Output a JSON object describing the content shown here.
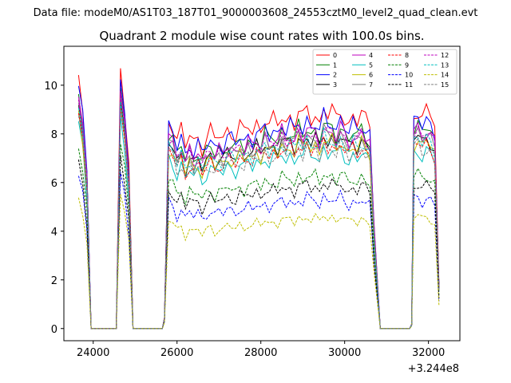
{
  "chart_data": {
    "type": "line",
    "suptitle": "Data file: modeM0/AS1T03_187T01_9000003608_24553cztM0_level2_quad_clean.evt",
    "title": "Quadrant 2 module wise count rates with 100.0s bins.",
    "xlabel": "",
    "ylabel": "",
    "x_offset_label": "+3.244e8",
    "xlim": [
      23300,
      32750
    ],
    "ylim": [
      -0.5,
      11.6
    ],
    "xticks": [
      24000,
      26000,
      28000,
      30000,
      32000
    ],
    "xtick_labels": [
      "24000",
      "26000",
      "28000",
      "30000",
      "32000"
    ],
    "yticks": [
      0,
      2,
      4,
      6,
      8,
      10
    ],
    "ytick_labels": [
      "0",
      "2",
      "4",
      "6",
      "8",
      "10"
    ],
    "grid": false,
    "legend_placement": "top-right",
    "segments": [
      {
        "x": [
          23650,
          23750,
          23850,
          23950
        ],
        "level_frac": [
          1.0,
          0.98,
          0.72,
          0.0
        ]
      },
      {
        "x": [
          24600,
          24650,
          24750,
          24850,
          24950
        ],
        "level_frac": [
          0.55,
          1.0,
          0.99,
          0.72,
          0.0
        ]
      },
      {
        "x": [
          25700,
          25800,
          25900,
          26000,
          26100,
          26200,
          26300,
          26400,
          26500,
          26600,
          26700,
          26800,
          26900,
          27000,
          27100,
          27200,
          27300,
          27400,
          27500,
          27600,
          27700,
          27800,
          27900,
          28000,
          28100,
          28200,
          28300,
          28400,
          28500,
          28600,
          28700,
          28800,
          28900,
          29000,
          29100,
          29200,
          29300,
          29400,
          29500,
          29600,
          29700,
          29800,
          29900,
          30000,
          30100,
          30200,
          30300,
          30400,
          30500,
          30600,
          30700
        ],
        "level_frac": [
          0.05,
          0.93,
          0.9,
          0.83,
          0.88,
          0.8,
          0.86,
          0.82,
          0.85,
          0.8,
          0.84,
          0.87,
          0.83,
          0.86,
          0.84,
          0.88,
          0.87,
          0.85,
          0.89,
          0.86,
          0.9,
          0.87,
          0.91,
          0.88,
          0.93,
          0.89,
          0.92,
          0.9,
          0.95,
          0.91,
          0.94,
          0.9,
          0.96,
          0.92,
          0.97,
          0.93,
          0.95,
          0.9,
          0.98,
          0.94,
          0.96,
          0.92,
          0.97,
          0.93,
          0.9,
          0.94,
          0.91,
          0.95,
          0.92,
          0.9,
          0.48
        ]
      },
      {
        "x": [
          31600,
          31650,
          31750,
          31850,
          31950,
          32050,
          32150,
          32250
        ],
        "level_frac": [
          0.02,
          0.95,
          0.97,
          0.93,
          0.96,
          0.94,
          0.9,
          0.2
        ]
      }
    ],
    "zero_runs": [
      [
        23950,
        24600
      ],
      [
        24950,
        25700
      ],
      [
        30800,
        31600
      ]
    ],
    "series": [
      {
        "name": "0",
        "color": "#ff0000",
        "style": "solid",
        "level": 9.3
      },
      {
        "name": "1",
        "color": "#008000",
        "style": "solid",
        "level": 8.6
      },
      {
        "name": "2",
        "color": "#0000ff",
        "style": "solid",
        "level": 8.9
      },
      {
        "name": "3",
        "color": "#000000",
        "style": "solid",
        "level": 8.2
      },
      {
        "name": "4",
        "color": "#bf00bf",
        "style": "solid",
        "level": 8.5
      },
      {
        "name": "5",
        "color": "#00bfbf",
        "style": "solid",
        "level": 7.6
      },
      {
        "name": "6",
        "color": "#bfbf00",
        "style": "solid",
        "level": 8.0
      },
      {
        "name": "7",
        "color": "#808080",
        "style": "solid",
        "level": 8.3
      },
      {
        "name": "8",
        "color": "#ff0000",
        "style": "dashed",
        "level": 7.9
      },
      {
        "name": "9",
        "color": "#008000",
        "style": "dashed",
        "level": 6.6
      },
      {
        "name": "10",
        "color": "#0000ff",
        "style": "dashed",
        "level": 5.6
      },
      {
        "name": "11",
        "color": "#000000",
        "style": "dashed",
        "level": 6.2
      },
      {
        "name": "12",
        "color": "#bf00bf",
        "style": "dashed",
        "level": 8.4
      },
      {
        "name": "13",
        "color": "#00bfbf",
        "style": "dashed",
        "level": 8.1
      },
      {
        "name": "14",
        "color": "#bfbf00",
        "style": "dashed",
        "level": 4.8
      },
      {
        "name": "15",
        "color": "#808080",
        "style": "dashed",
        "level": 7.8
      }
    ]
  }
}
